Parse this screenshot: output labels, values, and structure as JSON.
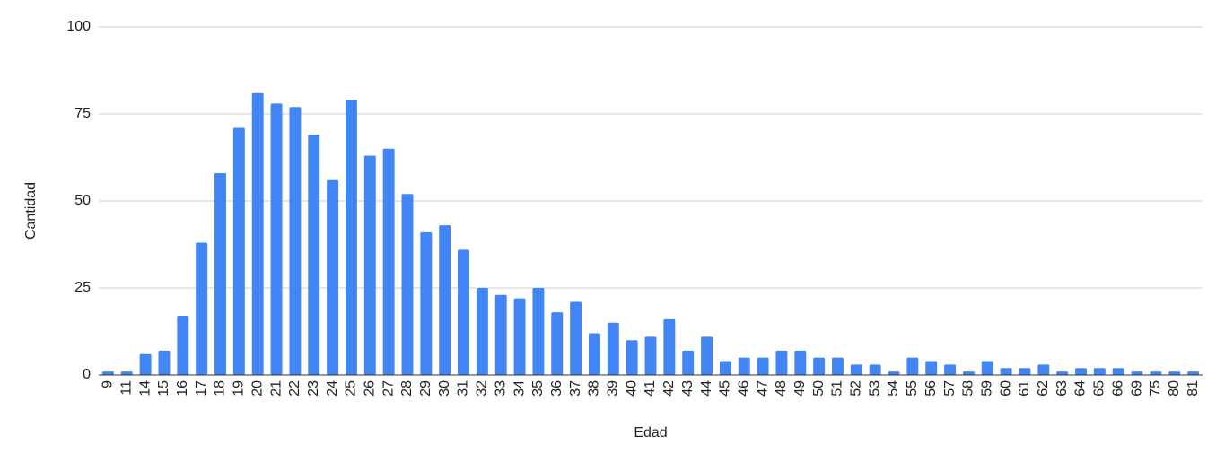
{
  "chart_data": {
    "type": "bar",
    "x_label": "Edad",
    "y_label": "Cantidad",
    "categories": [
      "9",
      "11",
      "14",
      "15",
      "16",
      "17",
      "18",
      "19",
      "20",
      "21",
      "22",
      "23",
      "24",
      "25",
      "26",
      "27",
      "28",
      "29",
      "30",
      "31",
      "32",
      "33",
      "34",
      "35",
      "36",
      "37",
      "38",
      "39",
      "40",
      "41",
      "42",
      "43",
      "44",
      "45",
      "46",
      "47",
      "48",
      "49",
      "50",
      "51",
      "52",
      "53",
      "54",
      "55",
      "56",
      "57",
      "58",
      "59",
      "60",
      "61",
      "62",
      "63",
      "64",
      "65",
      "66",
      "69",
      "75",
      "80",
      "81"
    ],
    "values": [
      1,
      1,
      6,
      7,
      17,
      38,
      58,
      71,
      81,
      78,
      77,
      69,
      56,
      79,
      63,
      65,
      52,
      41,
      43,
      36,
      25,
      23,
      22,
      25,
      18,
      21,
      12,
      15,
      10,
      11,
      16,
      7,
      11,
      4,
      5,
      5,
      7,
      7,
      5,
      5,
      3,
      3,
      1,
      5,
      4,
      3,
      1,
      4,
      2,
      2,
      3,
      1,
      2,
      2,
      2,
      1,
      1,
      1,
      1
    ],
    "color": "#4285f4",
    "ylim": [
      0,
      100
    ],
    "yticks": [
      0,
      25,
      50,
      75,
      100
    ],
    "grid": true
  }
}
